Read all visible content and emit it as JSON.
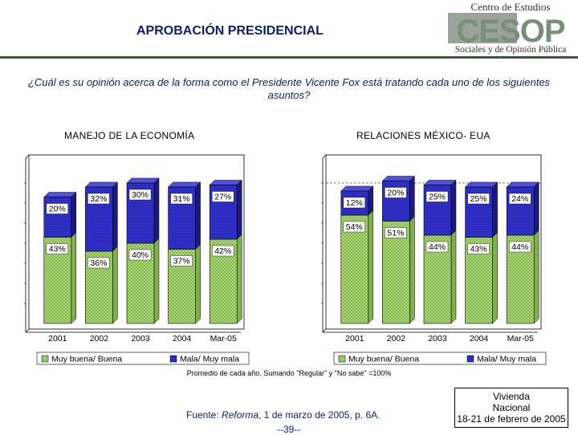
{
  "header": {
    "title": "APROBACIÓN PRESIDENCIAL",
    "logo_line1": "Centro de Estudios",
    "logo_acronym": "CESOP",
    "logo_line2": "Sociales y de Opinión Pública"
  },
  "question": "¿Cuál es su opinión acerca de la forma como el Presidente Vicente Fox está tratando cada uno de los siguientes asuntos?",
  "colors": {
    "good": "#b3d97a",
    "good_pattern": "#6aa83a",
    "bad": "#3030c8",
    "bad_dark": "#1a1a80",
    "title": "#0b1f6b"
  },
  "chart_data": [
    {
      "type": "bar",
      "stacked": true,
      "title": "MANEJO DE LA ECONOMÍA",
      "categories": [
        "2001",
        "2002",
        "2003",
        "2004",
        "Mar-05"
      ],
      "series": [
        {
          "name": "Muy buena/ Buena",
          "values": [
            43,
            36,
            40,
            37,
            42
          ],
          "labels": [
            "43%",
            "36%",
            "40%",
            "37%",
            "42%"
          ]
        },
        {
          "name": "Mala/ Muy mala",
          "values": [
            20,
            32,
            30,
            31,
            27
          ],
          "labels": [
            "20%",
            "32%",
            "30%",
            "31%",
            "27%"
          ]
        }
      ],
      "ylim": [
        0,
        80
      ],
      "legend": "bottom"
    },
    {
      "type": "bar",
      "stacked": true,
      "title": "RELACIONES MÉXICO- EUA",
      "categories": [
        "2001",
        "2002",
        "2003",
        "2004",
        "Mar-05"
      ],
      "series": [
        {
          "name": "Muy buena/ Buena",
          "values": [
            54,
            51,
            44,
            43,
            44
          ],
          "labels": [
            "54%",
            "51%",
            "44%",
            "43%",
            "44%"
          ]
        },
        {
          "name": "Mala/ Muy mala",
          "values": [
            12,
            20,
            25,
            25,
            24
          ],
          "labels": [
            "12%",
            "20%",
            "25%",
            "25%",
            "24%"
          ]
        }
      ],
      "ylim": [
        0,
        80
      ],
      "legend": "bottom"
    }
  ],
  "footnote": "Promedio de cada año. Sumando \"Regular\" y \"No sabe\" =100%",
  "source": {
    "label": "Fuente:",
    "publication": "Reforma",
    "rest": ", 1 de marzo de 2005, p. 6A."
  },
  "page_number": "--39--",
  "survey_box": {
    "line1": "Vivienda",
    "line2": "Nacional",
    "line3": "18-21 de febrero de 2005"
  }
}
